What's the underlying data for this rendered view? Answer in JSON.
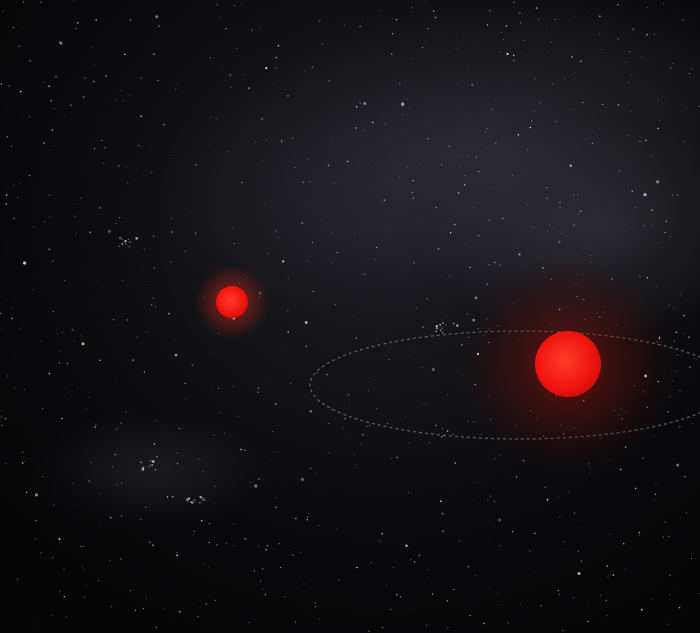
{
  "scene": {
    "background_color": "#070708",
    "milky_way_tint": "#2b2a30",
    "star_colors": [
      "#ffffff",
      "#dcdcff",
      "#ffe9d6",
      "#c9d6ff"
    ],
    "objects": [
      {
        "name": "small-red-star-icon",
        "color": "#ff1a12"
      },
      {
        "name": "large-red-star-icon",
        "color": "#ff1a12"
      },
      {
        "name": "orbit-path",
        "color": "#7fa89a",
        "style": "dashed"
      }
    ]
  }
}
